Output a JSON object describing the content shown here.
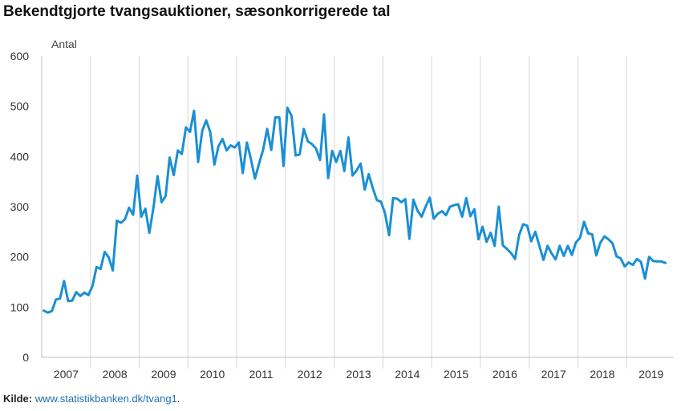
{
  "chart_data": {
    "type": "line",
    "title": "Bekendtgjorte tvangsauktioner, sæsonkorrigerede tal",
    "ylabel": "Antal",
    "xlabel": "",
    "ylim": [
      0,
      600
    ],
    "yticks": [
      "0",
      "100",
      "200",
      "300",
      "400",
      "500",
      "600"
    ],
    "x_year_labels": [
      "2007",
      "2008",
      "2009",
      "2010",
      "2011",
      "2012",
      "2013",
      "2014",
      "2015",
      "2016",
      "2017",
      "2018",
      "2019"
    ],
    "x_start": "2007-01",
    "frequency": "monthly",
    "grid": "vertical",
    "line_color": "#1a8fd4",
    "series": [
      {
        "values": [
          93,
          89,
          92,
          115,
          117,
          152,
          112,
          113,
          130,
          122,
          129,
          124,
          142,
          180,
          176,
          210,
          199,
          173,
          272,
          268,
          275,
          298,
          284,
          362,
          280,
          296,
          248,
          298,
          361,
          309,
          321,
          398,
          363,
          412,
          405,
          458,
          449,
          491,
          389,
          451,
          472,
          448,
          384,
          420,
          435,
          412,
          422,
          418,
          428,
          367,
          428,
          395,
          356,
          386,
          413,
          455,
          413,
          478,
          478,
          381,
          497,
          481,
          402,
          404,
          455,
          430,
          425,
          416,
          393,
          484,
          357,
          411,
          389,
          411,
          371,
          438,
          362,
          372,
          386,
          334,
          365,
          337,
          313,
          310,
          287,
          243,
          317,
          316,
          309,
          315,
          236,
          314,
          292,
          280,
          300,
          318,
          276,
          286,
          291,
          283,
          300,
          303,
          305,
          280,
          317,
          281,
          295,
          235,
          260,
          230,
          248,
          222,
          300,
          223,
          216,
          208,
          196,
          243,
          265,
          262,
          231,
          250,
          222,
          194,
          222,
          207,
          195,
          222,
          202,
          222,
          204,
          229,
          238,
          270,
          247,
          245,
          203,
          228,
          241,
          235,
          227,
          201,
          197,
          181,
          189,
          184,
          196,
          190,
          157,
          200,
          192,
          191,
          191,
          188
        ]
      }
    ]
  },
  "source": {
    "label": "Kilde:",
    "link": "www.statistikbanken.dk/tvang1",
    "suffix": "."
  }
}
